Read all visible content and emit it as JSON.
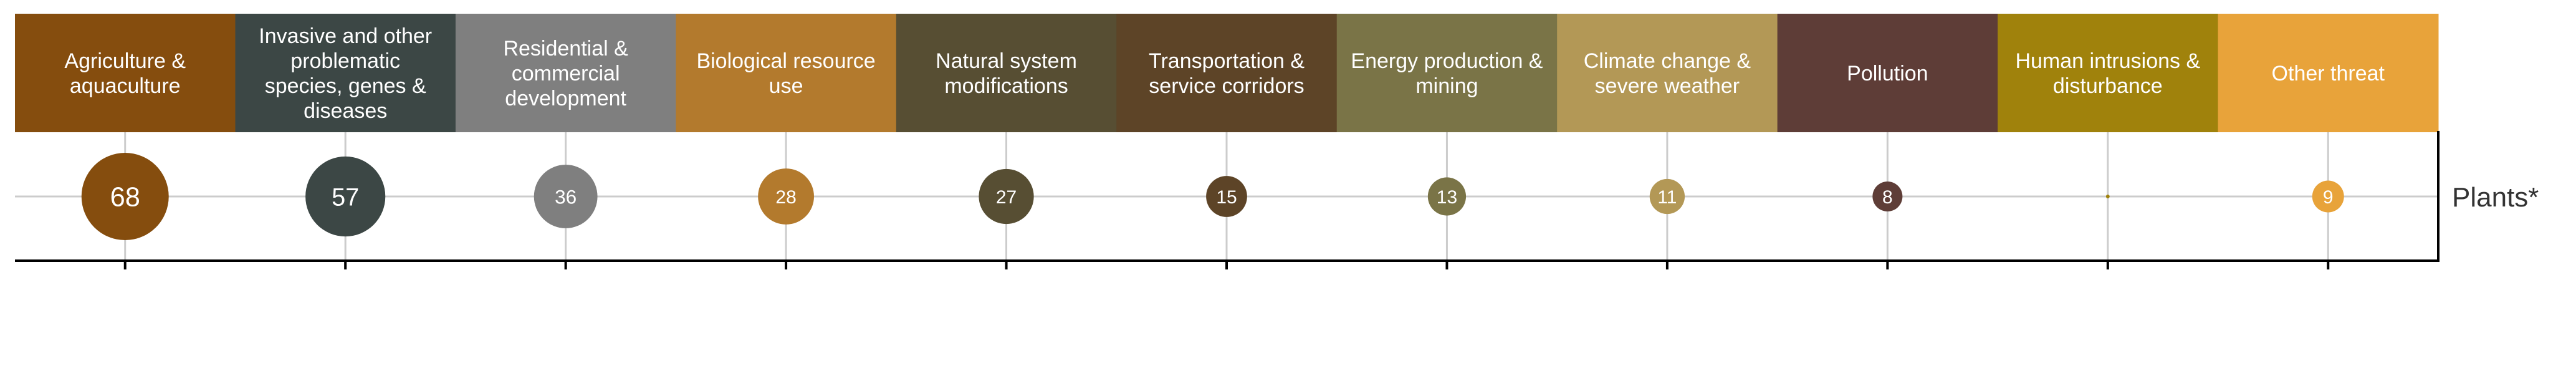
{
  "chart_data": {
    "type": "bubble-matrix",
    "categories": [
      {
        "label": "Agriculture & aquaculture",
        "lines": [
          "Agriculture &",
          "aquaculture"
        ],
        "color": "#854D0E"
      },
      {
        "label": "Invasive and other problematic species, genes & diseases",
        "lines": [
          "Invasive and other",
          "problematic",
          "species, genes &",
          "diseases"
        ],
        "color": "#3C4745"
      },
      {
        "label": "Residential & commercial development",
        "lines": [
          "Residential &",
          "commercial",
          "development"
        ],
        "color": "#7F7F7F"
      },
      {
        "label": "Biological resource use",
        "lines": [
          "Biological resource",
          "use"
        ],
        "color": "#B37A2D"
      },
      {
        "label": "Natural system modifications",
        "lines": [
          "Natural system",
          "modifications"
        ],
        "color": "#574E33"
      },
      {
        "label": "Transportation & service corridors",
        "lines": [
          "Transportation &",
          "service corridors"
        ],
        "color": "#5D4427"
      },
      {
        "label": "Energy production & mining",
        "lines": [
          "Energy production &",
          "mining"
        ],
        "color": "#7A7447"
      },
      {
        "label": "Climate change & severe weather",
        "lines": [
          "Climate change &",
          "severe weather"
        ],
        "color": "#B39856"
      },
      {
        "label": "Pollution",
        "lines": [
          "Pollution"
        ],
        "color": "#5E3D37"
      },
      {
        "label": "Human intrusions & disturbance",
        "lines": [
          "Human intrusions &",
          "disturbance"
        ],
        "color": "#A0820C"
      },
      {
        "label": "Other threat",
        "lines": [
          "Other threat"
        ],
        "color": "#E8A33A"
      }
    ],
    "rows": [
      {
        "label": "Plants*",
        "values": [
          68,
          57,
          36,
          28,
          27,
          15,
          13,
          11,
          8,
          0,
          9
        ]
      }
    ],
    "grid": true,
    "legend": "none"
  }
}
